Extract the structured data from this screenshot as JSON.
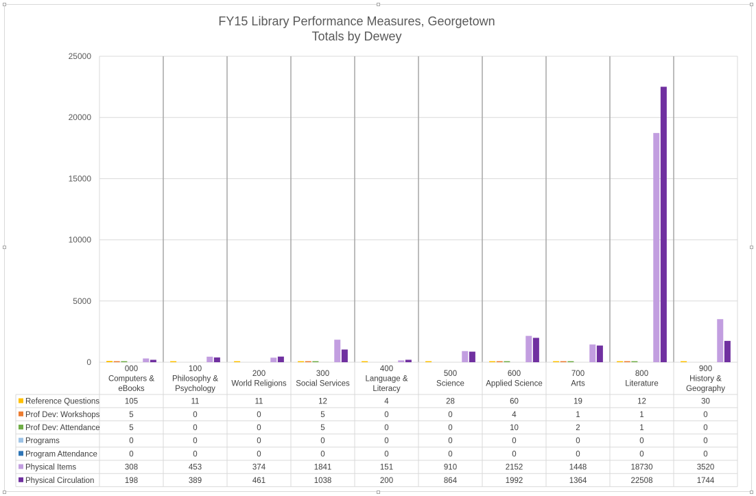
{
  "chart_data": {
    "type": "bar",
    "title": "FY15 Library Performance Measures, Georgetown",
    "subtitle": "Totals by Dewey",
    "ylim": [
      0,
      25000
    ],
    "yticks": [
      0,
      5000,
      10000,
      15000,
      20000,
      25000
    ],
    "grid": true,
    "legend": "data-table",
    "categories": [
      [
        "000",
        "Computers &",
        "eBooks"
      ],
      [
        "100",
        "Philosophy &",
        "Psychology"
      ],
      [
        "200",
        "World Religions"
      ],
      [
        "300",
        "Social Services"
      ],
      [
        "400",
        "Language &",
        "Literacy"
      ],
      [
        "500",
        "Science"
      ],
      [
        "600",
        "Applied Science"
      ],
      [
        "700",
        "Arts"
      ],
      [
        "800",
        "Literature"
      ],
      [
        "900",
        "History &",
        "Geography"
      ]
    ],
    "series": [
      {
        "name": "Reference Questions",
        "color": "#ffc000",
        "values": [
          105,
          11,
          11,
          12,
          4,
          28,
          60,
          19,
          12,
          30
        ]
      },
      {
        "name": "Prof Dev: Workshops",
        "color": "#ed7d31",
        "values": [
          5,
          0,
          0,
          5,
          0,
          0,
          4,
          1,
          1,
          0
        ]
      },
      {
        "name": "Prof Dev: Attendance",
        "color": "#70ad47",
        "values": [
          5,
          0,
          0,
          5,
          0,
          0,
          10,
          2,
          1,
          0
        ]
      },
      {
        "name": "Programs",
        "color": "#9dc3e6",
        "values": [
          0,
          0,
          0,
          0,
          0,
          0,
          0,
          0,
          0,
          0
        ]
      },
      {
        "name": "Program Attendance",
        "color": "#2e75b6",
        "values": [
          0,
          0,
          0,
          0,
          0,
          0,
          0,
          0,
          0,
          0
        ]
      },
      {
        "name": "Physical Items",
        "color": "#c29ee0",
        "values": [
          308,
          453,
          374,
          1841,
          151,
          910,
          2152,
          1448,
          18730,
          3520
        ]
      },
      {
        "name": "Physical Circulation",
        "color": "#7030a0",
        "values": [
          198,
          389,
          461,
          1038,
          200,
          864,
          1992,
          1364,
          22508,
          1744
        ]
      }
    ]
  }
}
